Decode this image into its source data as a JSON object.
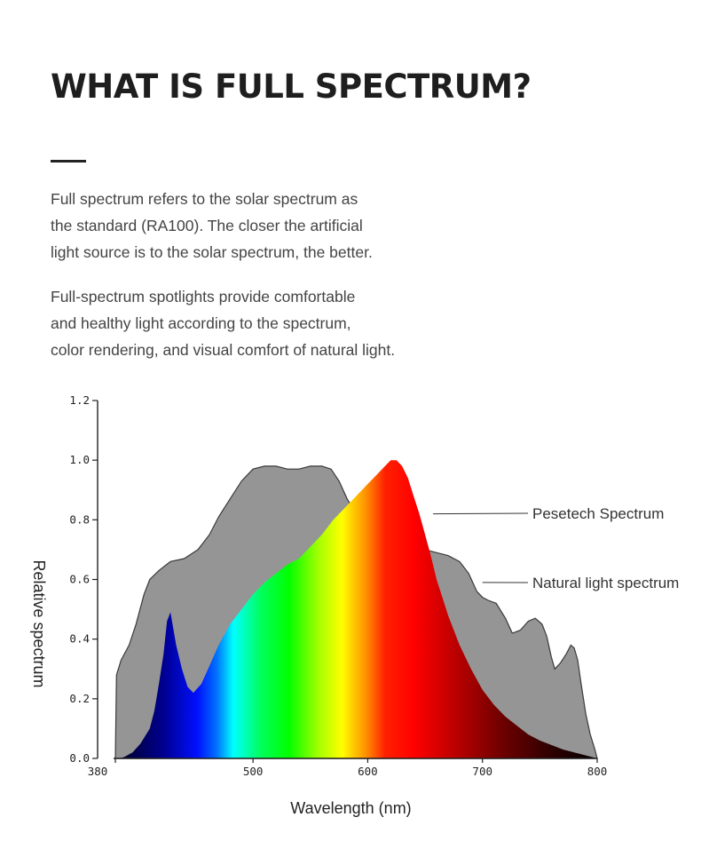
{
  "title": "WHAT IS FULL SPECTRUM?",
  "paragraph1": [
    "Full spectrum refers to the solar spectrum as",
    "the standard (RA100). The closer the artificial",
    "light source is to the solar spectrum, the better."
  ],
  "paragraph2": [
    "Full-spectrum spotlights provide comfortable",
    "and healthy light according to the spectrum,",
    "color rendering, and visual comfort of natural light."
  ],
  "colors": {
    "natural": "#959595",
    "natural_edge": "#3a3a3a",
    "axis": "#222222"
  },
  "chart_data": {
    "type": "area",
    "xlabel": "Wavelength (nm)",
    "ylabel": "Relative spectrum",
    "xlim": [
      380,
      800
    ],
    "ylim": [
      0,
      1.2
    ],
    "x_ticks": [
      "380",
      "500",
      "600",
      "700",
      "800"
    ],
    "x_tick_values": [
      380,
      500,
      600,
      700,
      800
    ],
    "y_ticks": [
      "0.0",
      "0.2",
      "0.4",
      "0.6",
      "0.8",
      "1.0",
      "1.2"
    ],
    "y_tick_values": [
      0,
      0.2,
      0.4,
      0.6,
      0.8,
      1.0,
      1.2
    ],
    "grid": false,
    "series": [
      {
        "name": "Natural light spectrum",
        "style": "gray-fill",
        "x": [
          380,
          381,
          385,
          392,
          398,
          405,
          410,
          418,
          428,
          440,
          452,
          462,
          470,
          480,
          490,
          500,
          510,
          520,
          530,
          540,
          550,
          560,
          568,
          575,
          582,
          590,
          600,
          610,
          620,
          630,
          640,
          650,
          660,
          670,
          680,
          688,
          695,
          700,
          705,
          712,
          720,
          726,
          733,
          740,
          746,
          752,
          756,
          760,
          763,
          768,
          773,
          777,
          780,
          783,
          786,
          790,
          794,
          798,
          800
        ],
        "y": [
          0.0,
          0.28,
          0.33,
          0.38,
          0.45,
          0.55,
          0.6,
          0.63,
          0.66,
          0.67,
          0.7,
          0.75,
          0.81,
          0.87,
          0.93,
          0.97,
          0.98,
          0.98,
          0.97,
          0.97,
          0.98,
          0.98,
          0.97,
          0.93,
          0.87,
          0.82,
          0.78,
          0.76,
          0.73,
          0.72,
          0.71,
          0.7,
          0.69,
          0.68,
          0.66,
          0.62,
          0.56,
          0.54,
          0.53,
          0.52,
          0.47,
          0.42,
          0.43,
          0.46,
          0.47,
          0.45,
          0.41,
          0.34,
          0.3,
          0.32,
          0.35,
          0.38,
          0.37,
          0.33,
          0.25,
          0.15,
          0.08,
          0.03,
          0.0
        ]
      },
      {
        "name": "Pesetech Spectrum",
        "style": "rainbow-fill",
        "x": [
          384,
          388,
          395,
          402,
          410,
          414,
          418,
          422,
          425,
          428,
          433,
          438,
          443,
          448,
          455,
          462,
          470,
          480,
          490,
          500,
          510,
          520,
          530,
          540,
          550,
          560,
          570,
          580,
          590,
          600,
          610,
          615,
          620,
          625,
          630,
          635,
          640,
          645,
          650,
          655,
          660,
          665,
          670,
          680,
          690,
          700,
          710,
          720,
          730,
          740,
          750,
          760,
          770,
          780,
          790,
          800
        ],
        "y": [
          0.0,
          0.005,
          0.02,
          0.05,
          0.1,
          0.16,
          0.25,
          0.35,
          0.46,
          0.49,
          0.38,
          0.3,
          0.24,
          0.22,
          0.25,
          0.31,
          0.38,
          0.45,
          0.5,
          0.55,
          0.59,
          0.62,
          0.65,
          0.67,
          0.71,
          0.75,
          0.8,
          0.84,
          0.88,
          0.92,
          0.96,
          0.98,
          1.0,
          1.0,
          0.98,
          0.94,
          0.88,
          0.82,
          0.75,
          0.68,
          0.6,
          0.54,
          0.48,
          0.38,
          0.3,
          0.23,
          0.18,
          0.14,
          0.11,
          0.08,
          0.06,
          0.045,
          0.03,
          0.02,
          0.01,
          0.0
        ]
      }
    ],
    "legend": [
      {
        "label": "Pesetech Spectrum",
        "target_x": 657,
        "target_y": 0.82
      },
      {
        "label": "Natural light spectrum",
        "target_x": 700,
        "target_y": 0.59
      }
    ]
  }
}
